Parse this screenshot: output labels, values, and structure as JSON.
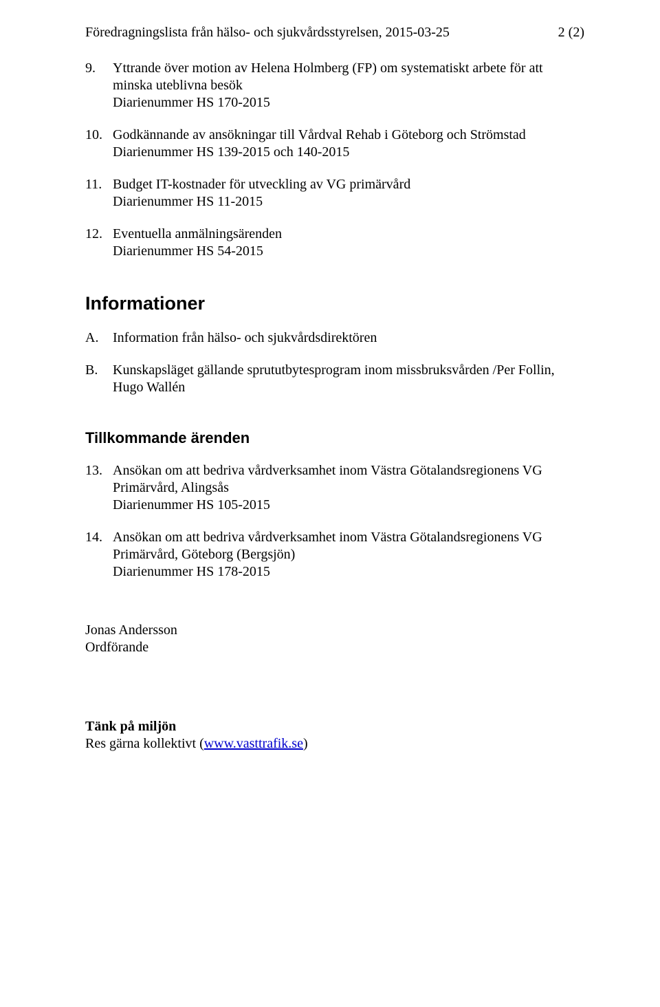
{
  "header": {
    "left": "Föredragningslista från hälso- och sjukvårdsstyrelsen, 2015-03-25",
    "right": "2 (2)"
  },
  "items_part1": [
    {
      "num": "9.",
      "title": "Yttrande över motion av Helena Holmberg (FP) om systematiskt arbete för att minska uteblivna besök",
      "diar": "Diarienummer HS 170-2015"
    },
    {
      "num": "10.",
      "title": "Godkännande av ansökningar till Vårdval Rehab i Göteborg och Strömstad",
      "diar": "Diarienummer HS 139-2015 och 140-2015"
    },
    {
      "num": "11.",
      "title": "Budget IT-kostnader för utveckling av VG primärvård",
      "diar": "Diarienummer HS 11-2015"
    },
    {
      "num": "12.",
      "title": "Eventuella anmälningsärenden",
      "diar": "Diarienummer HS 54-2015"
    }
  ],
  "section_informationer": {
    "heading": "Informationer",
    "items": [
      {
        "num": "A.",
        "text": "Information från hälso- och sjukvårdsdirektören"
      },
      {
        "num": "B.",
        "text": "Kunskapsläget gällande sprututbytesprogram inom missbruksvården /Per Follin, Hugo Wallén"
      }
    ]
  },
  "section_tillkommande": {
    "heading": "Tillkommande ärenden",
    "items": [
      {
        "num": "13.",
        "title": "Ansökan om att bedriva vårdverksamhet inom Västra Götalandsregionens VG Primärvård, Alingsås",
        "diar": "Diarienummer HS 105-2015"
      },
      {
        "num": "14.",
        "title": "Ansökan om att bedriva vårdverksamhet inom Västra Götalandsregionens VG Primärvård, Göteborg (Bergsjön)",
        "diar": "Diarienummer HS 178-2015"
      }
    ]
  },
  "signature": {
    "name": "Jonas Andersson",
    "role": "Ordförande"
  },
  "footer": {
    "bold": "Tänk på miljön",
    "text_pre": "Res gärna kollektivt (",
    "link_text": "www.vasttrafik.se",
    "text_post": ")"
  }
}
